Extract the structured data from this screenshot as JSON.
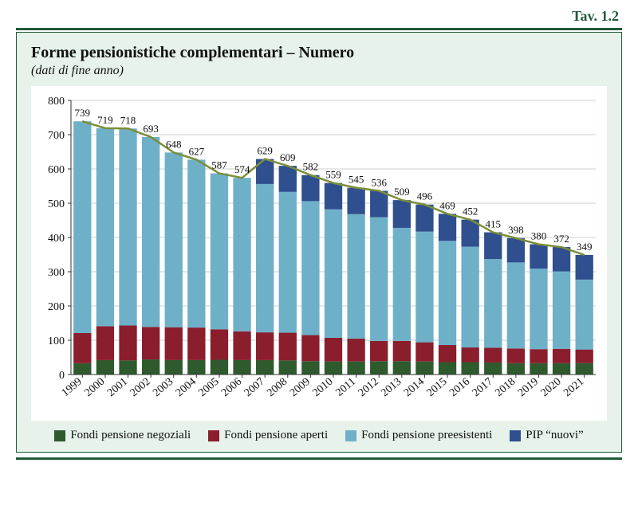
{
  "header": {
    "table_number": "Tav. 1.2",
    "title": "Forme pensionistiche complementari – Numero",
    "subtitle": "(dati di fine anno)"
  },
  "chart": {
    "type": "stacked-bar-with-line",
    "background_color": "#ffffff",
    "panel_background": "#e6f2ea",
    "rule_color": "#1f5b3a",
    "axis_color": "#333333",
    "grid_color": "#cfcfcf",
    "label_color": "#111111",
    "title_fontsize": 20,
    "subtitle_fontsize": 16,
    "axis_fontsize": 14,
    "value_fontsize": 13,
    "ylim": [
      0,
      800
    ],
    "ytick_step": 100,
    "bar_width_ratio": 0.78,
    "line_color": "#7a8f3a",
    "line_width": 2.5,
    "years": [
      "1999",
      "2000",
      "2001",
      "2002",
      "2003",
      "2004",
      "2005",
      "2006",
      "2007",
      "2008",
      "2009",
      "2010",
      "2011",
      "2012",
      "2013",
      "2014",
      "2015",
      "2016",
      "2017",
      "2018",
      "2019",
      "2020",
      "2021"
    ],
    "totals": [
      739,
      719,
      718,
      693,
      648,
      627,
      587,
      574,
      629,
      609,
      582,
      559,
      545,
      536,
      509,
      496,
      469,
      452,
      415,
      398,
      380,
      372,
      349
    ],
    "series": [
      {
        "key": "negoziali",
        "name": "Fondi pensione negoziali",
        "color": "#2e5a2e",
        "values": [
          33,
          42,
          41,
          44,
          42,
          42,
          43,
          42,
          42,
          41,
          39,
          38,
          38,
          39,
          39,
          38,
          36,
          36,
          35,
          33,
          33,
          33,
          33
        ]
      },
      {
        "key": "aperti",
        "name": "Fondi pensione aperti",
        "color": "#8a1e2d",
        "values": [
          88,
          99,
          102,
          95,
          96,
          95,
          89,
          84,
          81,
          81,
          76,
          69,
          67,
          59,
          59,
          56,
          50,
          43,
          43,
          43,
          41,
          42,
          40
        ]
      },
      {
        "key": "preesistenti",
        "name": "Fondi pensione preesistenti",
        "color": "#6fb0c9",
        "values": [
          618,
          578,
          575,
          554,
          510,
          490,
          455,
          448,
          433,
          411,
          391,
          375,
          363,
          361,
          330,
          323,
          304,
          294,
          259,
          251,
          235,
          226,
          204
        ]
      },
      {
        "key": "pip",
        "name": "PIP “nuovi”",
        "color": "#2f4f8f",
        "values": [
          0,
          0,
          0,
          0,
          0,
          0,
          0,
          0,
          73,
          76,
          76,
          77,
          77,
          77,
          81,
          79,
          79,
          79,
          78,
          71,
          71,
          71,
          72
        ]
      }
    ],
    "legend_order": [
      "negoziali",
      "aperti",
      "preesistenti",
      "pip"
    ]
  }
}
